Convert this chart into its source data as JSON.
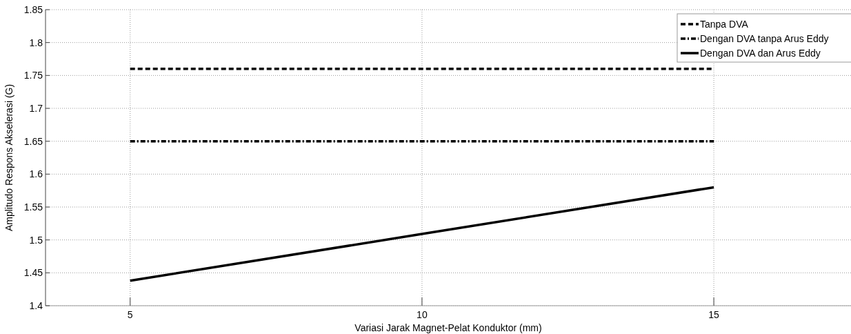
{
  "chart_data": {
    "type": "line",
    "xlabel": "Variasi Jarak Magnet-Pelat Konduktor (mm)",
    "ylabel": "Amplitudo Respons Akselerasi (G)",
    "x": [
      5,
      10,
      15
    ],
    "series": [
      {
        "name": "Tanpa DVA",
        "color": "#000000",
        "values": [
          1.76,
          1.76,
          1.76
        ],
        "line_style": "dashed"
      },
      {
        "name": "Dengan DVA tanpa Arus Eddy",
        "color": "#000000",
        "values": [
          1.65,
          1.65,
          1.65
        ],
        "line_style": "dashdot"
      },
      {
        "name": "Dengan DVA dan Arus Eddy",
        "color": "#000000",
        "values": [
          1.438,
          1.509,
          1.58
        ],
        "line_style": "solid"
      }
    ],
    "xlim": [
      3.55,
      17.35
    ],
    "xticks": [
      5,
      10,
      15
    ],
    "ylim": [
      1.4,
      1.85
    ],
    "yticks": [
      1.4,
      1.45,
      1.5,
      1.55,
      1.6,
      1.65,
      1.7,
      1.75,
      1.8,
      1.85
    ],
    "grid": true,
    "legend": "top right"
  }
}
